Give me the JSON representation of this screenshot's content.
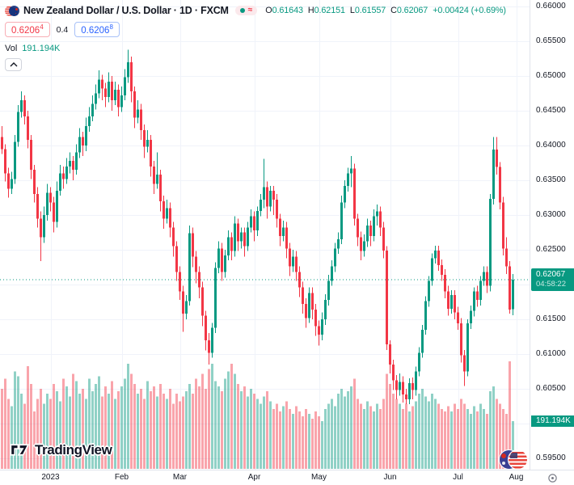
{
  "header": {
    "symbol_title": "New Zealand Dollar / U.S. Dollar · 1D · FXCM",
    "market_status": {
      "delayed_glyph": "≈"
    },
    "ohlc": {
      "o_label": "O",
      "o": "0.61643",
      "h_label": "H",
      "h": "0.62151",
      "l_label": "L",
      "l": "0.61557",
      "c_label": "C",
      "c": "0.62067",
      "change": "+0.00424 (+0.69%)"
    },
    "bid": "0.6206",
    "bid_sup": "4",
    "spread": "0.4",
    "ask": "0.6206",
    "ask_sup": "8",
    "vol_label": "Vol",
    "vol_value": "191.194K"
  },
  "price_label": {
    "price": "0.62067",
    "countdown": "04:58:22"
  },
  "volume_axis_label": "191.194K",
  "watermark": "TradingView",
  "chart_data": {
    "type": "candlestick",
    "title": "New Zealand Dollar / U.S. Dollar",
    "symbol": "NZDUSD",
    "timeframe": "1D",
    "exchange": "FXCM",
    "ylim": [
      0.595,
      0.66
    ],
    "grid": true,
    "legend_position": "top-left",
    "colors": {
      "up": "#089981",
      "down": "#f23645",
      "vol_up": "rgba(8,153,129,0.45)",
      "vol_down": "rgba(242,54,69,0.45)",
      "grid": "#f0f3fa",
      "axis_text": "#131722",
      "accent_blue": "#2962ff"
    },
    "price_unit": 0.0001,
    "last_price": 0.62067,
    "y_ticks": [
      "0.66000",
      "0.65500",
      "0.65000",
      "0.64500",
      "0.64000",
      "0.63500",
      "0.63000",
      "0.62500",
      "0.62000",
      "0.61500",
      "0.61000",
      "0.60500",
      "0.60000",
      "0.59500"
    ],
    "x_months": [
      {
        "label": "2023",
        "i": 15
      },
      {
        "label": "Feb",
        "i": 37
      },
      {
        "label": "Mar",
        "i": 55
      },
      {
        "label": "Apr",
        "i": 78
      },
      {
        "label": "May",
        "i": 98
      },
      {
        "label": "Jun",
        "i": 120
      },
      {
        "label": "Jul",
        "i": 141
      },
      {
        "label": "Aug",
        "i": 159
      }
    ],
    "volume_axis_max_k": 430,
    "candles_ohlc": [
      [
        6412,
        6428,
        6388,
        6395
      ],
      [
        6395,
        6402,
        6348,
        6360
      ],
      [
        6360,
        6368,
        6325,
        6338
      ],
      [
        6338,
        6362,
        6330,
        6352
      ],
      [
        6352,
        6415,
        6345,
        6405
      ],
      [
        6405,
        6458,
        6398,
        6448
      ],
      [
        6448,
        6478,
        6440,
        6465
      ],
      [
        6465,
        6472,
        6430,
        6442
      ],
      [
        6442,
        6450,
        6396,
        6408
      ],
      [
        6408,
        6415,
        6352,
        6365
      ],
      [
        6365,
        6372,
        6318,
        6330
      ],
      [
        6330,
        6340,
        6282,
        6295
      ],
      [
        6295,
        6305,
        6234,
        6268
      ],
      [
        6268,
        6312,
        6260,
        6300
      ],
      [
        6300,
        6345,
        6292,
        6332
      ],
      [
        6332,
        6340,
        6305,
        6318
      ],
      [
        6318,
        6326,
        6275,
        6290
      ],
      [
        6290,
        6348,
        6282,
        6335
      ],
      [
        6335,
        6372,
        6328,
        6360
      ],
      [
        6360,
        6370,
        6338,
        6352
      ],
      [
        6352,
        6382,
        6345,
        6370
      ],
      [
        6370,
        6390,
        6360,
        6378
      ],
      [
        6378,
        6385,
        6350,
        6365
      ],
      [
        6365,
        6402,
        6358,
        6390
      ],
      [
        6390,
        6425,
        6382,
        6412
      ],
      [
        6412,
        6420,
        6385,
        6400
      ],
      [
        6400,
        6440,
        6392,
        6428
      ],
      [
        6428,
        6455,
        6420,
        6442
      ],
      [
        6442,
        6472,
        6435,
        6460
      ],
      [
        6460,
        6488,
        6452,
        6475
      ],
      [
        6475,
        6508,
        6468,
        6495
      ],
      [
        6495,
        6502,
        6465,
        6482
      ],
      [
        6482,
        6490,
        6455,
        6470
      ],
      [
        6470,
        6505,
        6462,
        6492
      ],
      [
        6492,
        6500,
        6450,
        6465
      ],
      [
        6465,
        6492,
        6458,
        6480
      ],
      [
        6480,
        6488,
        6442,
        6455
      ],
      [
        6455,
        6485,
        6448,
        6472
      ],
      [
        6472,
        6510,
        6465,
        6498
      ],
      [
        6498,
        6538,
        6490,
        6520
      ],
      [
        6520,
        6528,
        6462,
        6478
      ],
      [
        6478,
        6485,
        6425,
        6440
      ],
      [
        6440,
        6465,
        6432,
        6452
      ],
      [
        6452,
        6460,
        6408,
        6422
      ],
      [
        6422,
        6430,
        6382,
        6398
      ],
      [
        6398,
        6422,
        6390,
        6408
      ],
      [
        6408,
        6415,
        6355,
        6370
      ],
      [
        6370,
        6378,
        6330,
        6345
      ],
      [
        6345,
        6390,
        6338,
        6358
      ],
      [
        6358,
        6365,
        6305,
        6320
      ],
      [
        6320,
        6328,
        6280,
        6295
      ],
      [
        6295,
        6322,
        6288,
        6310
      ],
      [
        6310,
        6318,
        6268,
        6282
      ],
      [
        6282,
        6290,
        6240,
        6255
      ],
      [
        6255,
        6262,
        6205,
        6218
      ],
      [
        6218,
        6226,
        6178,
        6190
      ],
      [
        6190,
        6198,
        6132,
        6158
      ],
      [
        6158,
        6185,
        6150,
        6176
      ],
      [
        6176,
        6285,
        6170,
        6274
      ],
      [
        6274,
        6282,
        6225,
        6240
      ],
      [
        6240,
        6248,
        6202,
        6218
      ],
      [
        6218,
        6226,
        6180,
        6196
      ],
      [
        6196,
        6204,
        6140,
        6155
      ],
      [
        6155,
        6162,
        6105,
        6120
      ],
      [
        6120,
        6130,
        6085,
        6102
      ],
      [
        6102,
        6145,
        6095,
        6138
      ],
      [
        6138,
        6232,
        6130,
        6224
      ],
      [
        6224,
        6262,
        6216,
        6252
      ],
      [
        6252,
        6260,
        6205,
        6218
      ],
      [
        6218,
        6250,
        6210,
        6242
      ],
      [
        6242,
        6278,
        6235,
        6268
      ],
      [
        6268,
        6275,
        6235,
        6248
      ],
      [
        6248,
        6298,
        6240,
        6288
      ],
      [
        6288,
        6295,
        6248,
        6262
      ],
      [
        6262,
        6282,
        6252,
        6275
      ],
      [
        6275,
        6282,
        6240,
        6255
      ],
      [
        6255,
        6290,
        6248,
        6282
      ],
      [
        6282,
        6308,
        6275,
        6298
      ],
      [
        6298,
        6305,
        6262,
        6278
      ],
      [
        6278,
        6312,
        6270,
        6306
      ],
      [
        6306,
        6330,
        6298,
        6322
      ],
      [
        6322,
        6381,
        6310,
        6340
      ],
      [
        6340,
        6348,
        6295,
        6312
      ],
      [
        6312,
        6342,
        6305,
        6335
      ],
      [
        6335,
        6342,
        6300,
        6322
      ],
      [
        6322,
        6330,
        6282,
        6295
      ],
      [
        6295,
        6302,
        6255,
        6270
      ],
      [
        6270,
        6292,
        6262,
        6282
      ],
      [
        6282,
        6290,
        6238,
        6252
      ],
      [
        6252,
        6260,
        6212,
        6226
      ],
      [
        6226,
        6250,
        6218,
        6240
      ],
      [
        6240,
        6248,
        6205,
        6218
      ],
      [
        6218,
        6226,
        6182,
        6196
      ],
      [
        6196,
        6204,
        6158,
        6172
      ],
      [
        6172,
        6180,
        6138,
        6152
      ],
      [
        6152,
        6196,
        6145,
        6188
      ],
      [
        6188,
        6196,
        6150,
        6164
      ],
      [
        6164,
        6172,
        6126,
        6140
      ],
      [
        6140,
        6148,
        6112,
        6128
      ],
      [
        6128,
        6160,
        6120,
        6150
      ],
      [
        6150,
        6186,
        6142,
        6178
      ],
      [
        6178,
        6214,
        6170,
        6205
      ],
      [
        6205,
        6235,
        6198,
        6226
      ],
      [
        6226,
        6260,
        6218,
        6252
      ],
      [
        6252,
        6275,
        6244,
        6265
      ],
      [
        6265,
        6328,
        6258,
        6318
      ],
      [
        6318,
        6350,
        6310,
        6342
      ],
      [
        6342,
        6368,
        6334,
        6360
      ],
      [
        6360,
        6385,
        6340,
        6367
      ],
      [
        6367,
        6374,
        6285,
        6295
      ],
      [
        6295,
        6302,
        6255,
        6268
      ],
      [
        6268,
        6276,
        6235,
        6248
      ],
      [
        6248,
        6272,
        6240,
        6262
      ],
      [
        6262,
        6295,
        6254,
        6285
      ],
      [
        6285,
        6292,
        6255,
        6270
      ],
      [
        6270,
        6308,
        6262,
        6298
      ],
      [
        6298,
        6315,
        6285,
        6305
      ],
      [
        6305,
        6312,
        6270,
        6282
      ],
      [
        6282,
        6290,
        6238,
        6249
      ],
      [
        6249,
        6255,
        6106,
        6114
      ],
      [
        6114,
        6120,
        6072,
        6085
      ],
      [
        6085,
        6092,
        6048,
        6062
      ],
      [
        6062,
        6070,
        6035,
        6048
      ],
      [
        6048,
        6072,
        6040,
        6060
      ],
      [
        6060,
        6068,
        6030,
        6042
      ],
      [
        6042,
        6050,
        6028,
        6035
      ],
      [
        6035,
        6065,
        6028,
        6058
      ],
      [
        6058,
        6066,
        6035,
        6048
      ],
      [
        6048,
        6082,
        6040,
        6075
      ],
      [
        6075,
        6110,
        6068,
        6102
      ],
      [
        6102,
        6142,
        6095,
        6135
      ],
      [
        6135,
        6183,
        6128,
        6176
      ],
      [
        6176,
        6212,
        6168,
        6205
      ],
      [
        6205,
        6245,
        6198,
        6238
      ],
      [
        6238,
        6256,
        6230,
        6249
      ],
      [
        6249,
        6256,
        6220,
        6228
      ],
      [
        6228,
        6236,
        6205,
        6214
      ],
      [
        6214,
        6222,
        6180,
        6190
      ],
      [
        6190,
        6198,
        6155,
        6165
      ],
      [
        6165,
        6192,
        6158,
        6185
      ],
      [
        6185,
        6192,
        6150,
        6160
      ],
      [
        6160,
        6168,
        6135,
        6144
      ],
      [
        6144,
        6152,
        6088,
        6098
      ],
      [
        6098,
        6106,
        6054,
        6075
      ],
      [
        6075,
        6150,
        6068,
        6144
      ],
      [
        6144,
        6170,
        6136,
        6162
      ],
      [
        6162,
        6196,
        6154,
        6190
      ],
      [
        6190,
        6198,
        6168,
        6178
      ],
      [
        6178,
        6212,
        6170,
        6205
      ],
      [
        6205,
        6226,
        6198,
        6218
      ],
      [
        6218,
        6226,
        6188,
        6198
      ],
      [
        6198,
        6330,
        6190,
        6323
      ],
      [
        6323,
        6412,
        6315,
        6394
      ],
      [
        6394,
        6412,
        6358,
        6369
      ],
      [
        6369,
        6376,
        6308,
        6318
      ],
      [
        6318,
        6326,
        6242,
        6252
      ],
      [
        6252,
        6268,
        6215,
        6226
      ],
      [
        6226,
        6234,
        6158,
        6164
      ],
      [
        6164.3,
        6215.1,
        6155.7,
        6206.7
      ]
    ],
    "volumes_k": [
      320,
      360,
      280,
      250,
      390,
      370,
      300,
      260,
      410,
      340,
      230,
      280,
      320,
      260,
      300,
      280,
      340,
      310,
      270,
      360,
      330,
      290,
      380,
      350,
      300,
      320,
      280,
      360,
      310,
      340,
      370,
      290,
      330,
      300,
      350,
      280,
      310,
      330,
      360,
      420,
      380,
      340,
      300,
      320,
      280,
      350,
      310,
      330,
      290,
      340,
      300,
      280,
      320,
      260,
      300,
      270,
      290,
      310,
      340,
      300,
      360,
      330,
      380,
      320,
      400,
      420,
      350,
      330,
      310,
      360,
      390,
      420,
      380,
      340,
      310,
      330,
      290,
      320,
      300,
      280,
      260,
      290,
      310,
      270,
      240,
      260,
      230,
      250,
      270,
      240,
      220,
      250,
      230,
      210,
      240,
      220,
      200,
      230,
      210,
      190,
      240,
      260,
      280,
      250,
      300,
      320,
      290,
      310,
      330,
      360,
      280,
      260,
      240,
      270,
      250,
      230,
      260,
      240,
      280,
      380,
      340,
      300,
      280,
      260,
      240,
      260,
      230,
      250,
      270,
      300,
      320,
      290,
      270,
      300,
      280,
      260,
      240,
      230,
      250,
      230,
      260,
      240,
      280,
      260,
      240,
      220,
      250,
      230,
      260,
      240,
      220,
      310,
      330,
      280,
      260,
      240,
      220,
      430,
      191.194
    ]
  }
}
